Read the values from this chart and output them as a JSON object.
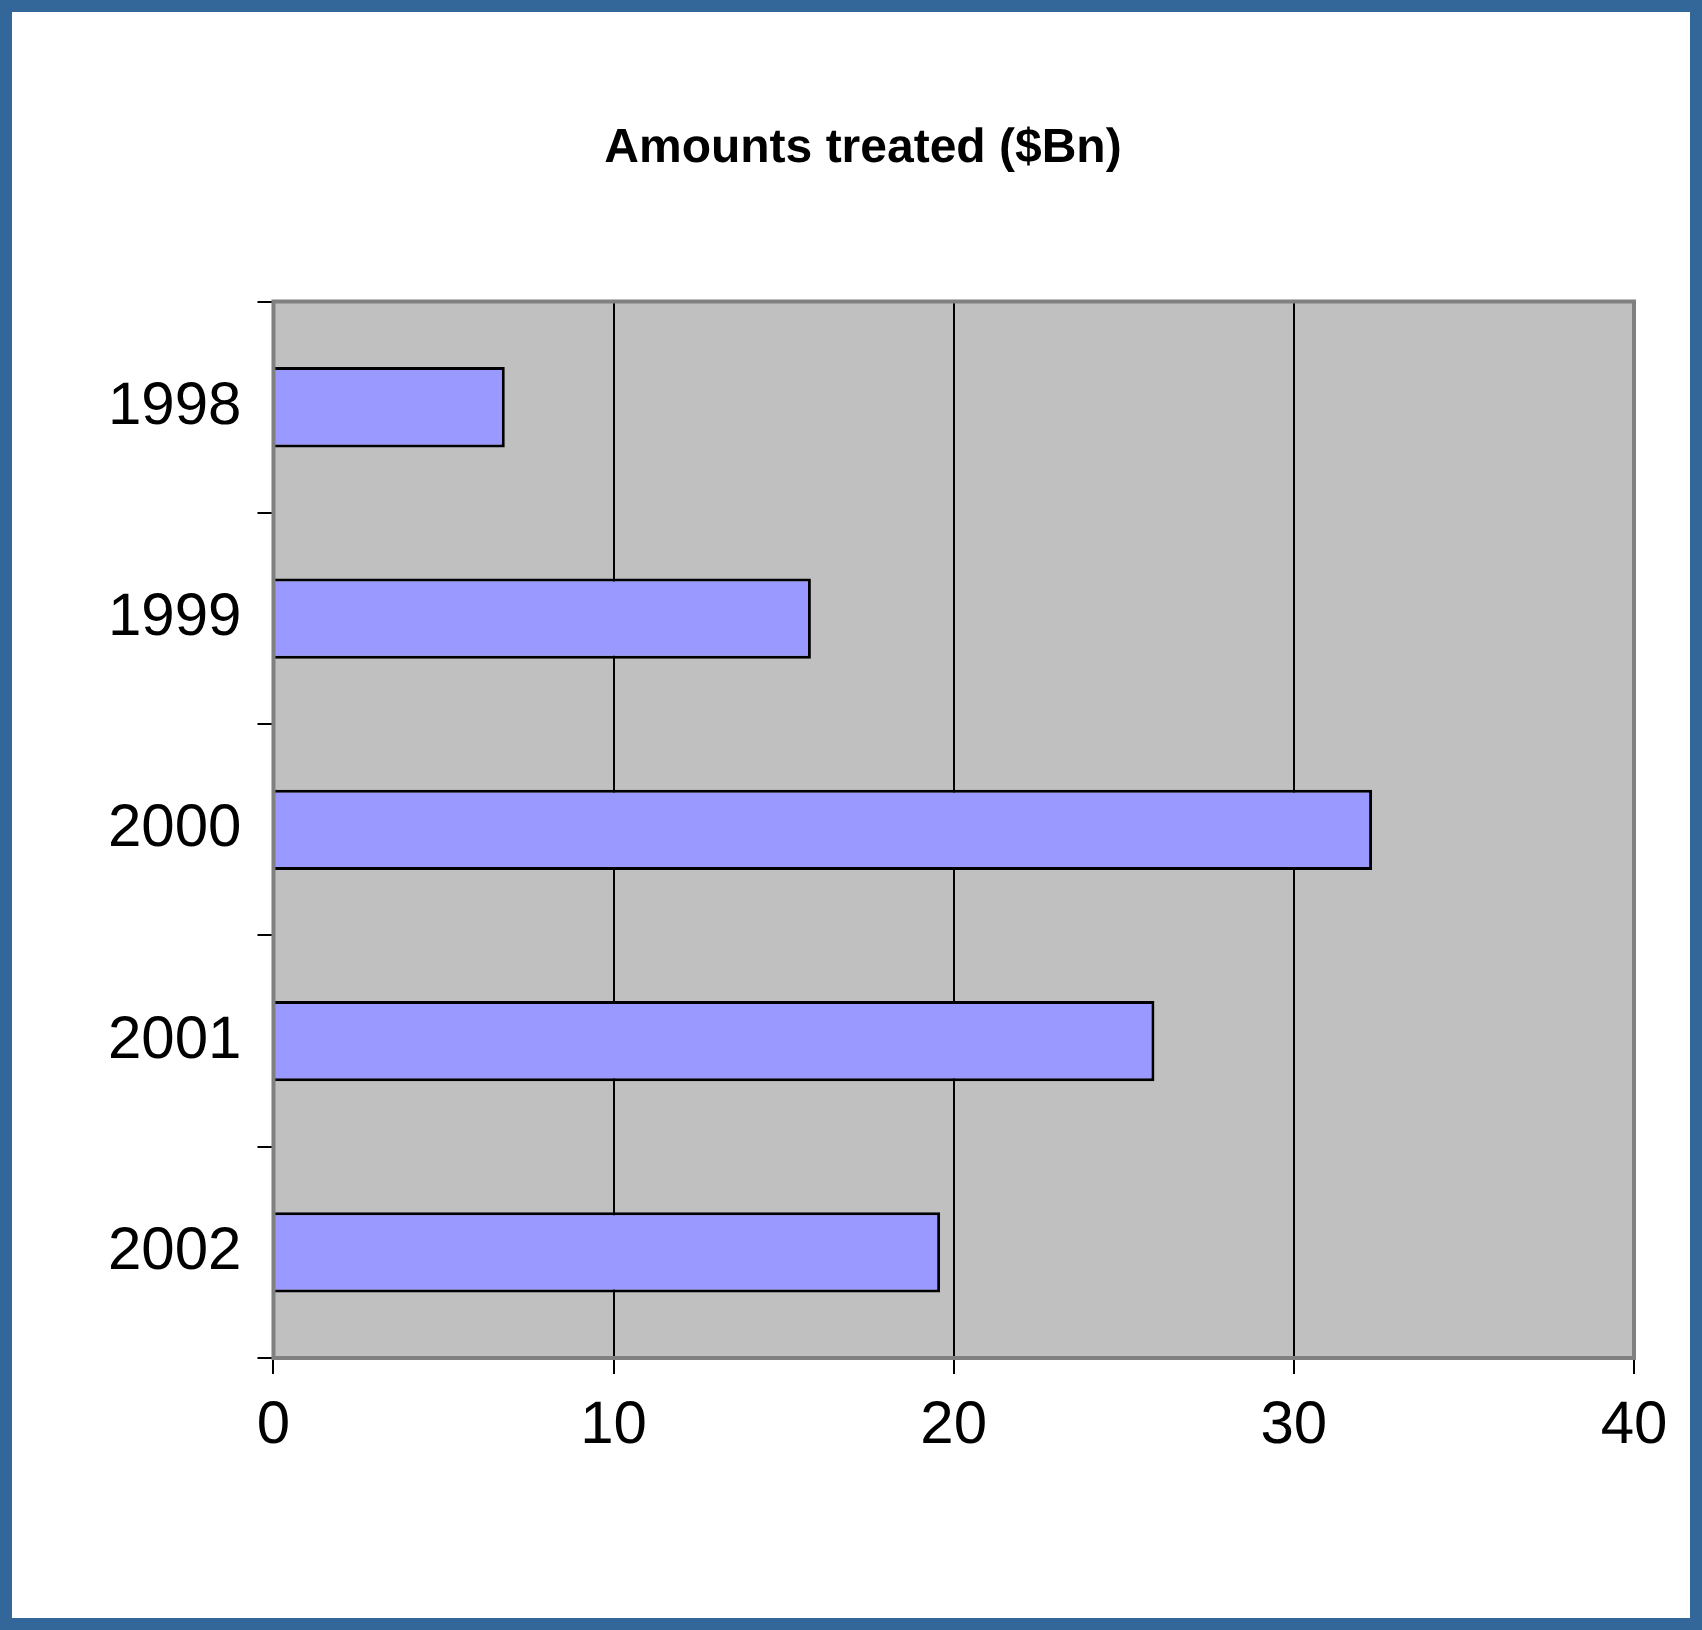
{
  "chart_data": {
    "type": "bar",
    "orientation": "horizontal",
    "title": "Amounts treated ($Bn)",
    "categories": [
      "1998",
      "1999",
      "2000",
      "2001",
      "2002"
    ],
    "values": [
      6.8,
      15.8,
      32.3,
      25.9,
      19.6
    ],
    "color": "#9999ff",
    "xlim": [
      0,
      40
    ],
    "xticks": [
      0,
      10,
      20,
      30,
      40
    ],
    "grid": "x",
    "legend": false
  }
}
